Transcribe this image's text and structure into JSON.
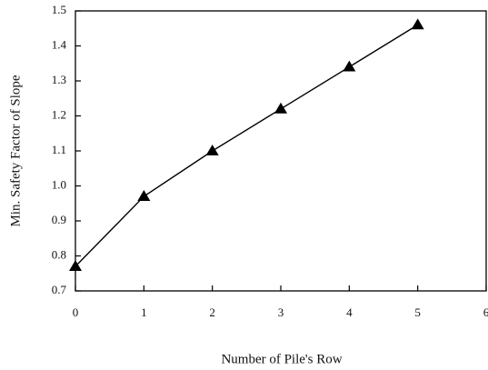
{
  "chart_data": {
    "type": "line",
    "x_label": "Number of Pile's Row",
    "y_label": "Min. Safety Factor of Slope",
    "x": [
      0,
      1,
      2,
      3,
      4,
      5
    ],
    "series": [
      {
        "color": "#000000",
        "marker": "triangle",
        "values": [
          0.77,
          0.97,
          1.1,
          1.22,
          1.34,
          1.46
        ]
      }
    ],
    "xlim": [
      0,
      6
    ],
    "xticks": [
      0,
      1,
      2,
      3,
      4,
      5,
      6
    ],
    "ylim": [
      0.7,
      1.5
    ],
    "yticks": [
      0.7,
      0.8,
      0.9,
      {
        "value": 1,
        "label": "1.0"
      },
      1.1,
      1.2,
      1.3,
      1.4,
      1.5
    ],
    "grid": false
  }
}
